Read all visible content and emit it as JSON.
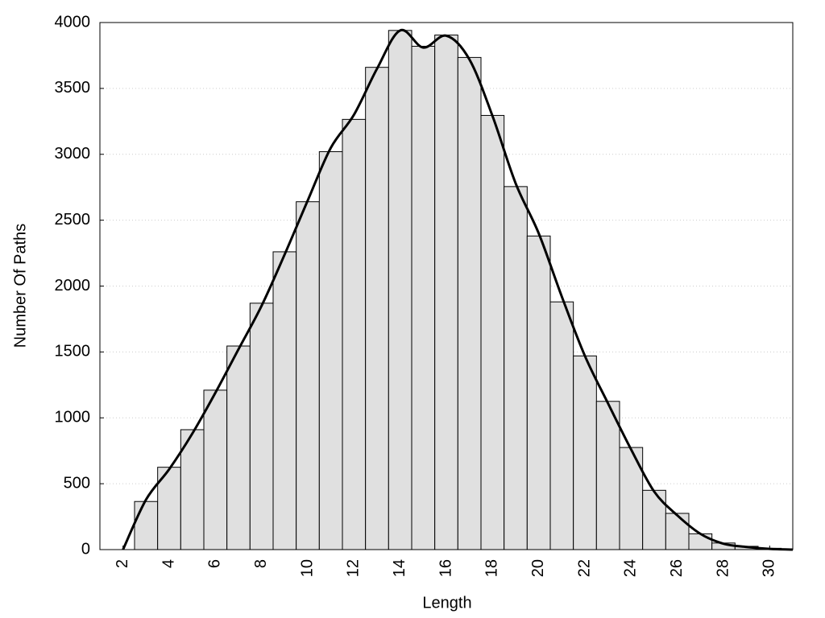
{
  "chart_data": {
    "type": "histogram",
    "x_label": "Length",
    "y_label": "Number Of Paths",
    "bins": [
      2.5,
      3.5,
      4.5,
      5.5,
      6.5,
      7.5,
      8.5,
      9.5,
      10.5,
      11.5,
      12.5,
      13.5,
      14.5,
      15.5,
      16.5,
      17.5,
      18.5,
      19.5,
      20.5,
      21.5,
      22.5,
      23.5,
      24.5,
      25.5,
      26.5,
      27.5,
      28.5,
      29.5,
      30.5
    ],
    "values": [
      365,
      625,
      910,
      1210,
      1545,
      1870,
      2260,
      2640,
      3020,
      3265,
      3660,
      3940,
      3820,
      3905,
      3735,
      3295,
      2755,
      2380,
      1880,
      1470,
      1125,
      775,
      450,
      275,
      120,
      50,
      25,
      10
    ],
    "color": "#e0e0e0",
    "line": {
      "x": [
        2,
        3,
        4,
        5,
        6,
        7,
        8,
        9,
        10,
        11,
        12,
        13,
        14,
        15,
        16,
        17,
        18,
        19,
        20,
        21,
        22,
        23,
        24,
        25,
        26,
        27,
        28,
        29,
        30,
        31
      ],
      "values": [
        0,
        380,
        610,
        880,
        1190,
        1520,
        1850,
        2240,
        2650,
        3050,
        3300,
        3650,
        3940,
        3810,
        3900,
        3720,
        3290,
        2780,
        2400,
        1920,
        1470,
        1110,
        760,
        440,
        260,
        120,
        45,
        20,
        5,
        0
      ],
      "color": "#000000"
    },
    "xlim": [
      1,
      31
    ],
    "xticks": [
      2,
      4,
      6,
      8,
      10,
      12,
      14,
      16,
      18,
      20,
      22,
      24,
      26,
      28,
      30
    ],
    "ylim": [
      0,
      4000
    ],
    "yticks": [
      0,
      500,
      1000,
      1500,
      2000,
      2500,
      3000,
      3500,
      4000
    ],
    "grid": true
  }
}
